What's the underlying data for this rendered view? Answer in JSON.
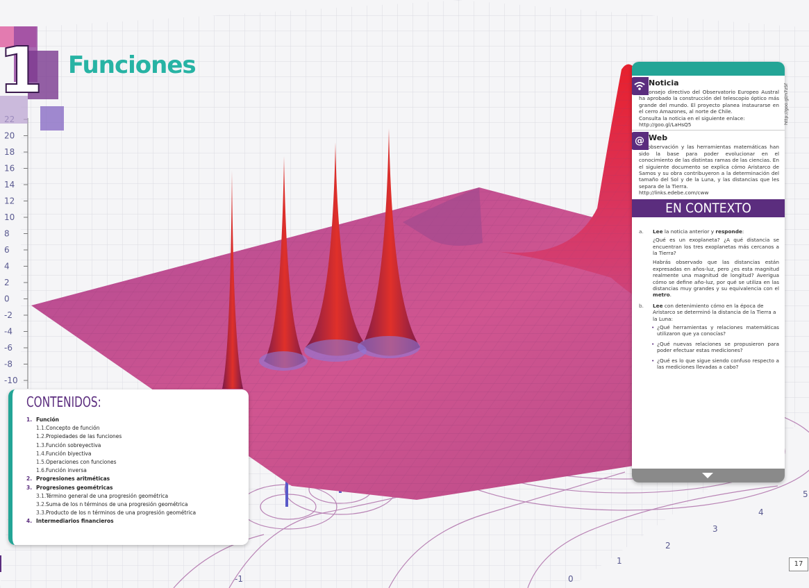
{
  "chapter": {
    "number": "1",
    "title": "Funciones"
  },
  "axis": {
    "y_ticks": [
      "22",
      "20",
      "18",
      "16",
      "14",
      "12",
      "10",
      "8",
      "6",
      "4",
      "2",
      "0",
      "-2",
      "-4",
      "-6",
      "-8",
      "-10"
    ],
    "x_ticks": [
      "-1",
      "0"
    ],
    "z_ticks": [
      "1",
      "2",
      "3",
      "4",
      "5"
    ]
  },
  "contents": {
    "title": "CONTENIDOS:",
    "items": [
      {
        "num": "1.",
        "label": "Función"
      },
      {
        "num": "1.1.",
        "label": "Concepto de función"
      },
      {
        "num": "1.2.",
        "label": "Propiedades de las funciones"
      },
      {
        "num": "1.3.",
        "label": "Función sobreyectiva"
      },
      {
        "num": "1.4.",
        "label": "Función biyectiva"
      },
      {
        "num": "1.5.",
        "label": "Operaciones con funciones"
      },
      {
        "num": "1.6.",
        "label": "Función inversa"
      },
      {
        "num": "2.",
        "label": "Progresiones aritméticas"
      },
      {
        "num": "3.",
        "label": "Progresiones geométricas"
      },
      {
        "num": "3.1.",
        "label": "Término general de una progresión geométrica"
      },
      {
        "num": "3.2.",
        "label": "Suma de los n términos de una progresión geométrica"
      },
      {
        "num": "3.3.",
        "label": "Producto de los n términos de una progresión geométrica"
      },
      {
        "num": "4.",
        "label": "Intermediarios financieros"
      }
    ]
  },
  "panel": {
    "noticia": {
      "title": "Noticia",
      "body": "El consejo directivo del Observatorio Europeo Austral ha aprobado la construcción del telescopio óptico más grande del mundo. El proyecto planea instaurarse en el cerro Amazones, al norte de Chile.",
      "link_text": "Consulta la noticia en el siguiente enlace:",
      "link": "http://goo.gl/LaHsQ5"
    },
    "web": {
      "title": "Web",
      "body": "La observación y las herramientas matemáticas han sido la base para poder evolucionar en el conocimiento de las distintas ramas de las ciencias. En el siguiente documento se explica cómo Aristarco de Samos y su obra contribuyeron a la determinación del tamaño del Sol y de la Luna, y las distancias que les separa de la Tierra.",
      "link": "http://links.edebe.com/cww"
    },
    "context_title": "EN CONTEXTO",
    "q_a": {
      "letter": "a.",
      "lead_bold1": "Lee",
      "lead_mid": " la noticia anterior y ",
      "lead_bold2": "responde",
      "lead_end": ":",
      "p1": "¿Qué es un exoplaneta? ¿A qué distancia se encuentran los tres exoplanetas más cercanos a la Tierra?",
      "p2_pre": "Habrás observado que las distancias están expresadas en años-luz, pero ¿es esta magnitud realmente una magnitud de longitud? Averigua cómo se define año-luz, por qué se utiliza en las distancias muy grandes y su equivalencia con el ",
      "p2_bold": "metro",
      "p2_end": "."
    },
    "q_b": {
      "letter": "b.",
      "lead_bold": "Lee",
      "lead_rest": " con detenimiento cómo en la época de Aristarco se determinó la distancia de la Tierra a la Luna:",
      "bullets": [
        "¿Qué herramientas y relaciones matemáticas utilizaron que ya conocías?",
        "¿Qué nuevas relaciones se propusieron para poder efectuar estas mediciones?",
        "¿Qué es lo que sigue siendo confuso respecto a las mediciones llevadas a cabo?"
      ]
    }
  },
  "side_url": "http://goo.gl/n7z5f",
  "page_number": "17",
  "colors": {
    "teal": "#23a596",
    "purple": "#5b2d7e",
    "surface": "#c4508f"
  }
}
